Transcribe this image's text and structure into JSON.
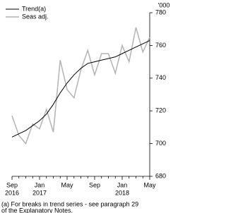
{
  "chart_data": {
    "type": "line",
    "y_unit_label": "'000",
    "categories": [
      "Sep",
      null,
      null,
      null,
      "Jan",
      null,
      null,
      null,
      "May",
      null,
      null,
      null,
      "Sep",
      null,
      null,
      null,
      "Jan",
      null,
      null,
      null,
      "May"
    ],
    "category_years": [
      "2016",
      null,
      null,
      null,
      "2017",
      null,
      null,
      null,
      null,
      null,
      null,
      null,
      null,
      null,
      null,
      null,
      "2018",
      null,
      null,
      null,
      null
    ],
    "series": [
      {
        "name": "Trend(a)",
        "color": "#000000",
        "values": [
          704,
          706,
          708,
          711,
          714,
          718,
          724,
          731,
          737,
          742,
          746,
          749,
          750,
          751,
          752,
          753,
          755,
          757,
          759,
          761,
          763
        ]
      },
      {
        "name": "Seas adj.",
        "color": "#b3b3b3",
        "values": [
          717,
          705,
          700,
          712,
          709,
          721,
          707,
          751,
          733,
          728,
          745,
          757,
          742,
          755,
          755,
          743,
          760,
          750,
          771,
          756,
          765
        ]
      }
    ],
    "ylim": [
      680,
      780
    ],
    "yticks": [
      680,
      700,
      720,
      740,
      760,
      780
    ],
    "legend": "upper left",
    "notes": [
      "(a) For breaks in trend series - see paragraph 29",
      "of the Explanatory Notes."
    ]
  }
}
